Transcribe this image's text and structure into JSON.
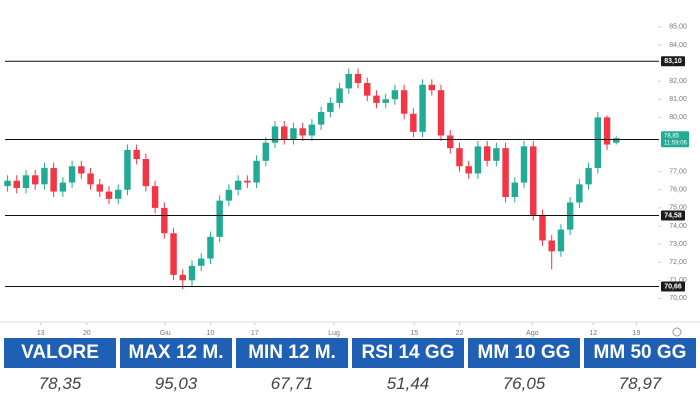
{
  "chart_data": {
    "type": "candlestick",
    "open": [
      76.2,
      76.5,
      76.1,
      76.8,
      76.3,
      77.2,
      75.9,
      76.4,
      77.3,
      76.9,
      76.3,
      75.9,
      75.5,
      76.0,
      78.2,
      77.7,
      76.2,
      75.0,
      73.6,
      71.3,
      71.0,
      71.8,
      72.2,
      73.4,
      75.4,
      76.0,
      76.5,
      76.4,
      77.6,
      78.6,
      79.5,
      78.8,
      79.4,
      79.0,
      79.6,
      80.3,
      80.8,
      81.6,
      82.4,
      81.9,
      81.2,
      80.8,
      81.0,
      81.5,
      80.2,
      79.2,
      81.8,
      81.5,
      79.0,
      78.3,
      77.3,
      76.9,
      78.4,
      77.6,
      78.3,
      75.6,
      76.4,
      78.4,
      74.6,
      73.2,
      72.6,
      73.8,
      75.3,
      76.3,
      77.2,
      80.0,
      78.6
    ],
    "high": [
      76.8,
      76.8,
      77.1,
      77.1,
      77.5,
      77.5,
      76.7,
      77.6,
      77.6,
      77.2,
      76.6,
      76.2,
      76.3,
      78.5,
      78.5,
      78.0,
      76.5,
      75.3,
      73.9,
      71.6,
      72.1,
      72.5,
      73.7,
      75.7,
      76.3,
      76.8,
      76.8,
      77.9,
      78.9,
      79.8,
      79.8,
      79.7,
      79.7,
      79.9,
      80.6,
      81.1,
      81.9,
      82.7,
      82.7,
      82.2,
      81.5,
      81.3,
      81.8,
      81.8,
      80.5,
      82.1,
      82.1,
      81.8,
      79.3,
      78.6,
      77.6,
      78.7,
      78.7,
      78.6,
      78.6,
      76.7,
      78.7,
      78.7,
      74.9,
      73.5,
      74.1,
      75.6,
      76.6,
      77.5,
      80.3,
      80.1,
      78.95
    ],
    "low": [
      75.9,
      75.8,
      75.8,
      76.0,
      76.0,
      75.6,
      75.6,
      76.1,
      76.6,
      76.0,
      75.6,
      75.2,
      75.2,
      75.7,
      77.4,
      75.9,
      74.7,
      73.3,
      71.0,
      70.5,
      70.7,
      71.5,
      71.9,
      73.1,
      75.1,
      75.7,
      76.1,
      76.1,
      77.3,
      78.3,
      78.5,
      78.5,
      78.7,
      78.7,
      79.3,
      80.0,
      80.5,
      81.3,
      81.6,
      80.9,
      80.5,
      80.5,
      80.7,
      79.9,
      78.9,
      78.9,
      81.2,
      78.7,
      78.0,
      77.0,
      76.6,
      76.6,
      77.3,
      77.3,
      75.3,
      75.3,
      76.1,
      74.3,
      72.9,
      71.6,
      72.3,
      73.5,
      75.0,
      76.0,
      76.9,
      78.2,
      78.5
    ],
    "close": [
      76.5,
      76.1,
      76.8,
      76.3,
      77.2,
      75.9,
      76.4,
      77.3,
      76.9,
      76.3,
      75.9,
      75.5,
      76.0,
      78.2,
      77.7,
      76.2,
      75.0,
      73.6,
      71.3,
      71.0,
      71.8,
      72.2,
      73.4,
      75.4,
      76.0,
      76.5,
      76.4,
      77.6,
      78.6,
      79.5,
      78.8,
      79.4,
      79.0,
      79.6,
      80.3,
      80.8,
      81.6,
      82.4,
      81.9,
      81.2,
      80.8,
      81.0,
      81.5,
      80.2,
      79.2,
      81.8,
      81.5,
      79.0,
      78.3,
      77.3,
      76.9,
      78.4,
      77.6,
      78.3,
      75.6,
      76.4,
      78.4,
      74.6,
      73.2,
      72.6,
      73.8,
      75.3,
      76.3,
      77.2,
      80.0,
      78.5,
      78.85
    ],
    "up_color": "#22ab94",
    "down_color": "#f23645",
    "xlim": [
      -0.6,
      70.2
    ],
    "xticks": [
      {
        "value": 3.6,
        "label": "13"
      },
      {
        "value": 8.6,
        "label": "20"
      },
      {
        "value": 17.1,
        "label": "Giu"
      },
      {
        "value": 22,
        "label": "10"
      },
      {
        "value": 26.8,
        "label": "17"
      },
      {
        "value": 35.4,
        "label": "Lug"
      },
      {
        "value": 44.1,
        "label": "15"
      },
      {
        "value": 49,
        "label": "22"
      },
      {
        "value": 56.9,
        "label": "Ago"
      },
      {
        "value": 63.5,
        "label": "12"
      },
      {
        "value": 68.2,
        "label": "19"
      }
    ],
    "ylim": [
      69.0,
      85.6
    ],
    "yticks": [
      {
        "value": 85,
        "label": "85,00"
      },
      {
        "value": 84,
        "label": "84,00"
      },
      {
        "value": 82,
        "label": "82,00"
      },
      {
        "value": 81,
        "label": "81,00"
      },
      {
        "value": 80,
        "label": "80,00"
      },
      {
        "value": 77,
        "label": "77,00"
      },
      {
        "value": 76,
        "label": "76,00"
      },
      {
        "value": 75,
        "label": "75,00"
      },
      {
        "value": 74,
        "label": "74,00"
      },
      {
        "value": 73,
        "label": "73,00"
      },
      {
        "value": 72,
        "label": "72,00"
      },
      {
        "value": 71,
        "label": "71,00"
      },
      {
        "value": 70,
        "label": "70,00"
      }
    ],
    "levels": [
      {
        "value": 83.1,
        "label": "83,10"
      },
      {
        "value": 78.78,
        "label": "78,78"
      },
      {
        "value": 74.58,
        "label": "74,58"
      },
      {
        "value": 70.66,
        "label": "70,66"
      }
    ],
    "last": {
      "value": 78.85,
      "label": "78,85",
      "time": "11:59:06"
    }
  },
  "table": {
    "headers": [
      "VALORE",
      "MAX 12 M.",
      "MIN 12 M.",
      "RSI 14 GG",
      "MM 10 GG",
      "MM 50 GG"
    ],
    "values": [
      "78,35",
      "95,03",
      "67,71",
      "51,44",
      "76,05",
      "78,97"
    ]
  }
}
